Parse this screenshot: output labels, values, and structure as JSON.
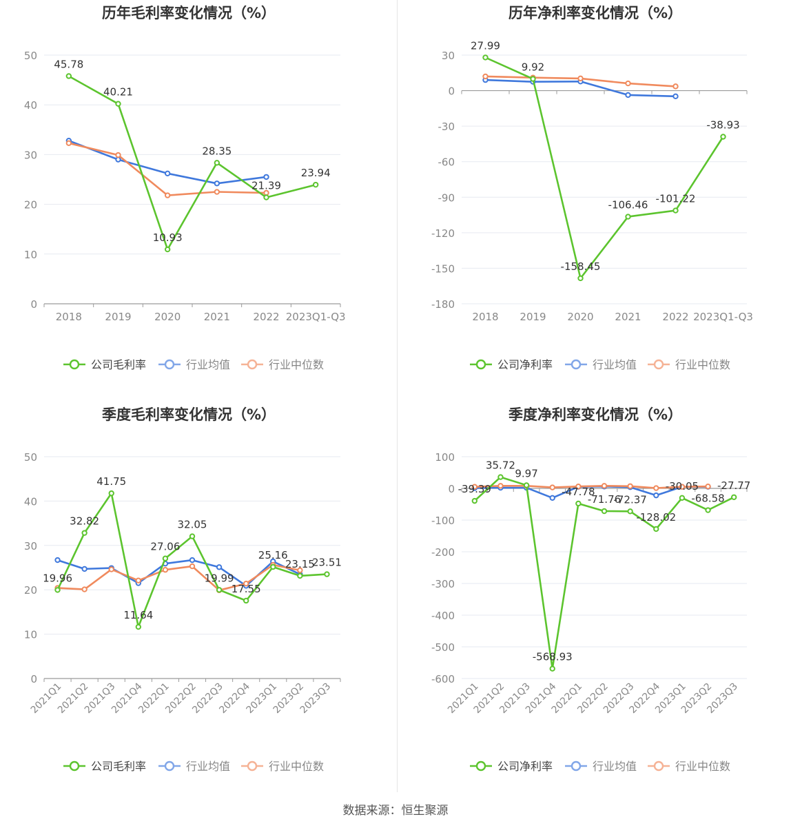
{
  "source_text": "数据来源：恒生聚源",
  "legend": {
    "industry_avg": "行业均值",
    "industry_median": "行业中位数"
  },
  "colors": {
    "company": "#5cc42e",
    "industry_avg": "#3f78dc",
    "industry_median": "#f08a5d",
    "grid": "#e6e9f0",
    "axis": "#9a9a9a"
  },
  "chart_data": [
    {
      "type": "line",
      "title": "历年毛利率变化情况（%）",
      "categories": [
        "2018",
        "2019",
        "2020",
        "2021",
        "2022",
        "2023Q1-Q3"
      ],
      "ylim": [
        0,
        50
      ],
      "yticks": [
        0,
        10,
        20,
        30,
        40,
        50
      ],
      "series": [
        {
          "name": "公司毛利率",
          "key": "company",
          "values": [
            45.78,
            40.21,
            10.93,
            28.35,
            21.39,
            23.94
          ],
          "labels": true
        },
        {
          "name": "行业均值",
          "key": "industry_avg",
          "values": [
            32.8,
            29.0,
            26.2,
            24.2,
            25.5,
            null
          ]
        },
        {
          "name": "行业中位数",
          "key": "industry_median",
          "values": [
            32.3,
            29.9,
            21.8,
            22.5,
            22.3,
            null
          ]
        }
      ]
    },
    {
      "type": "line",
      "title": "历年净利率变化情况（%）",
      "categories": [
        "2018",
        "2019",
        "2020",
        "2021",
        "2022",
        "2023Q1-Q3"
      ],
      "ylim": [
        -180,
        30
      ],
      "yticks": [
        -180,
        -150,
        -120,
        -90,
        -60,
        -30,
        0,
        30
      ],
      "series": [
        {
          "name": "公司净利率",
          "key": "company",
          "values": [
            27.99,
            9.92,
            -158.45,
            -106.46,
            -101.22,
            -38.93
          ],
          "labels": true
        },
        {
          "name": "行业均值",
          "key": "industry_avg",
          "values": [
            9.0,
            7.5,
            7.7,
            -3.7,
            -4.8,
            null
          ]
        },
        {
          "name": "行业中位数",
          "key": "industry_median",
          "values": [
            12.0,
            11.0,
            10.3,
            6.1,
            3.6,
            null
          ]
        }
      ]
    },
    {
      "type": "line",
      "title": "季度毛利率变化情况（%）",
      "categories": [
        "2021Q1",
        "2021Q2",
        "2021Q3",
        "2021Q4",
        "2022Q1",
        "2022Q2",
        "2022Q3",
        "2022Q4",
        "2023Q1",
        "2023Q2",
        "2023Q3"
      ],
      "ylim": [
        0,
        50
      ],
      "yticks": [
        0,
        10,
        20,
        30,
        40,
        50
      ],
      "rotate_x": true,
      "series": [
        {
          "name": "公司毛利率",
          "key": "company",
          "values": [
            19.96,
            32.82,
            41.75,
            11.64,
            27.06,
            32.05,
            19.99,
            17.55,
            25.16,
            23.15,
            23.51
          ],
          "labels": true
        },
        {
          "name": "行业均值",
          "key": "industry_avg",
          "values": [
            26.7,
            24.7,
            24.9,
            21.5,
            25.9,
            26.7,
            25.1,
            20.9,
            26.4,
            23.5,
            null
          ]
        },
        {
          "name": "行业中位数",
          "key": "industry_median",
          "values": [
            20.4,
            20.1,
            24.6,
            22.1,
            24.5,
            25.3,
            19.9,
            21.4,
            25.6,
            24.4,
            null
          ]
        }
      ]
    },
    {
      "type": "line",
      "title": "季度净利率变化情况（%）",
      "categories": [
        "2021Q1",
        "2021Q2",
        "2021Q3",
        "2021Q4",
        "2022Q1",
        "2022Q2",
        "2022Q3",
        "2022Q4",
        "2023Q1",
        "2023Q2",
        "2023Q3"
      ],
      "ylim": [
        -600,
        100
      ],
      "yticks": [
        -600,
        -500,
        -400,
        -300,
        -200,
        -100,
        0,
        100
      ],
      "rotate_x": true,
      "series": [
        {
          "name": "公司净利率",
          "key": "company",
          "values": [
            -39.39,
            35.72,
            9.97,
            -568.93,
            -47.78,
            -71.76,
            -72.37,
            -128.02,
            -30.05,
            -68.58,
            -27.77
          ],
          "labels": true
        },
        {
          "name": "行业均值",
          "key": "industry_avg",
          "values": [
            1.0,
            2.0,
            2.0,
            -30.0,
            5.0,
            6.0,
            4.0,
            -22.0,
            5.0,
            5.0,
            null
          ]
        },
        {
          "name": "行业中位数",
          "key": "industry_median",
          "values": [
            5.0,
            8.0,
            8.0,
            3.0,
            6.0,
            8.0,
            7.0,
            1.0,
            5.0,
            6.0,
            null
          ]
        }
      ]
    }
  ]
}
